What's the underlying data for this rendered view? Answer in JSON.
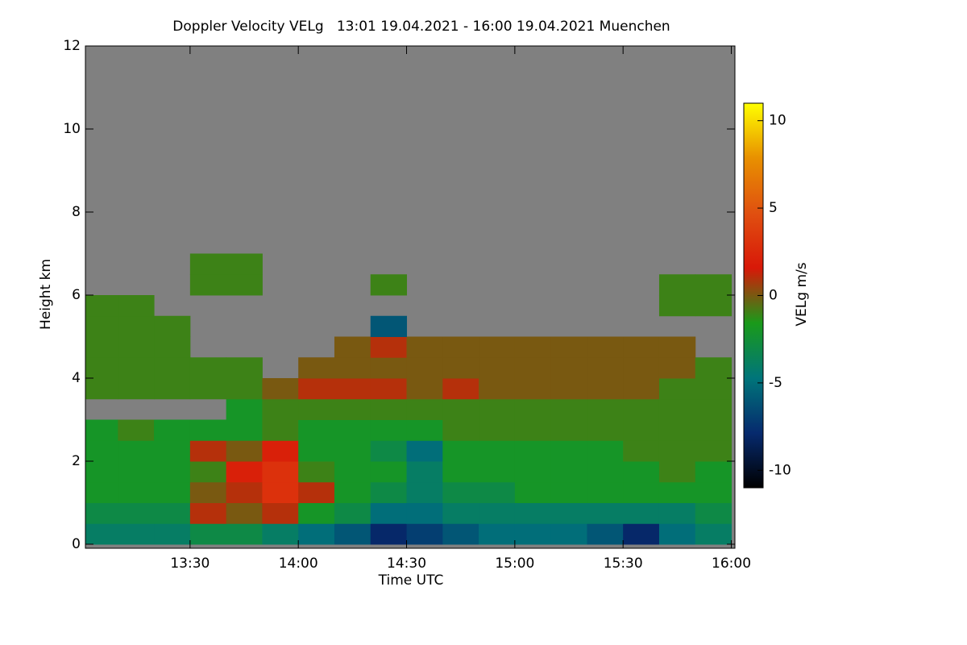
{
  "chart_data": {
    "type": "heatmap",
    "title": "Doppler Velocity VELg   13:01 19.04.2021 - 16:00 19.04.2021 Muenchen",
    "x_label": "Time UTC",
    "y_label": "Height km",
    "colorbar_label": "VELg m/s",
    "xlim": [
      781,
      961
    ],
    "xticks": [
      {
        "value": 810,
        "label": "13:30"
      },
      {
        "value": 840,
        "label": "14:00"
      },
      {
        "value": 870,
        "label": "14:30"
      },
      {
        "value": 900,
        "label": "15:00"
      },
      {
        "value": 930,
        "label": "15:30"
      },
      {
        "value": 960,
        "label": "16:00"
      }
    ],
    "ylim": [
      0,
      12
    ],
    "yticks": [
      0,
      2,
      4,
      6,
      8,
      10,
      12
    ],
    "zlim": [
      -11,
      11
    ],
    "zticks": [
      -10,
      -5,
      0,
      5,
      10
    ],
    "colormap": [
      "#000000",
      "#062a6e",
      "#00757a",
      "#1a9a1a",
      "#d81808",
      "#e05010",
      "#e89000",
      "#ffff00"
    ],
    "background": "#808080",
    "xbins": [
      781,
      790,
      800,
      810,
      820,
      830,
      840,
      850,
      860,
      870,
      880,
      890,
      900,
      910,
      920,
      930,
      940,
      950,
      960
    ],
    "ybins": [
      0,
      0.5,
      1,
      1.5,
      2,
      2.5,
      3,
      3.5,
      4,
      4.5,
      5,
      5.5,
      6,
      6.5,
      7
    ],
    "values": [
      [
        -4,
        -4,
        -4,
        -3,
        -3,
        -4,
        -5,
        -6,
        -8,
        -7,
        -6,
        -5,
        -5,
        -5,
        -6,
        -8,
        -5,
        -4
      ],
      [
        -3,
        -3,
        -3,
        1,
        0,
        1,
        -2,
        -3,
        -5,
        -5,
        -4,
        -4,
        -4,
        -4,
        -4,
        -4,
        -4,
        -3
      ],
      [
        -2,
        -2,
        -2,
        0,
        1,
        3,
        1,
        -2,
        -3,
        -4,
        -3,
        -3,
        -2,
        -2,
        -2,
        -2,
        -2,
        -2
      ],
      [
        -2,
        -2,
        -2,
        -1,
        2,
        3,
        -1,
        -2,
        -2,
        -4,
        -2,
        -2,
        -2,
        -2,
        -2,
        -2,
        -1,
        -2
      ],
      [
        -2,
        -2,
        -2,
        1,
        0,
        2,
        -2,
        -2,
        -3,
        -5,
        -2,
        -2,
        -2,
        -2,
        -2,
        -1,
        -1,
        -1
      ],
      [
        -2,
        -1,
        -2,
        -2,
        -2,
        -1,
        -2,
        -2,
        -2,
        -2,
        -1,
        -1,
        -1,
        -1,
        -1,
        -1,
        -1,
        -1
      ],
      [
        null,
        null,
        null,
        null,
        -2,
        -1,
        -1,
        -1,
        -1,
        -1,
        -1,
        -1,
        -1,
        -1,
        -1,
        -1,
        -1,
        -1
      ],
      [
        -1,
        -1,
        -1,
        -1,
        -1,
        0,
        1,
        1,
        1,
        0,
        1,
        0,
        0,
        0,
        0,
        0,
        -1,
        -1
      ],
      [
        -1,
        -1,
        -1,
        -1,
        -1,
        null,
        0,
        0,
        0,
        0,
        0,
        0,
        0,
        0,
        0,
        0,
        0,
        -1
      ],
      [
        -1,
        -1,
        -1,
        null,
        null,
        null,
        null,
        0,
        1,
        0,
        0,
        0,
        0,
        0,
        0,
        0,
        0,
        null
      ],
      [
        -1,
        -1,
        -1,
        null,
        null,
        null,
        null,
        null,
        -6,
        null,
        null,
        null,
        null,
        null,
        null,
        null,
        null,
        null
      ],
      [
        -1,
        -1,
        null,
        null,
        null,
        null,
        null,
        null,
        null,
        null,
        null,
        null,
        null,
        null,
        null,
        null,
        -1,
        -1
      ],
      [
        null,
        null,
        null,
        -1,
        -1,
        null,
        null,
        null,
        -1,
        null,
        null,
        null,
        null,
        null,
        null,
        null,
        -1,
        -1
      ],
      [
        null,
        null,
        null,
        -1,
        -1,
        null,
        null,
        null,
        null,
        null,
        null,
        null,
        null,
        null,
        null,
        null,
        null,
        null
      ]
    ]
  }
}
